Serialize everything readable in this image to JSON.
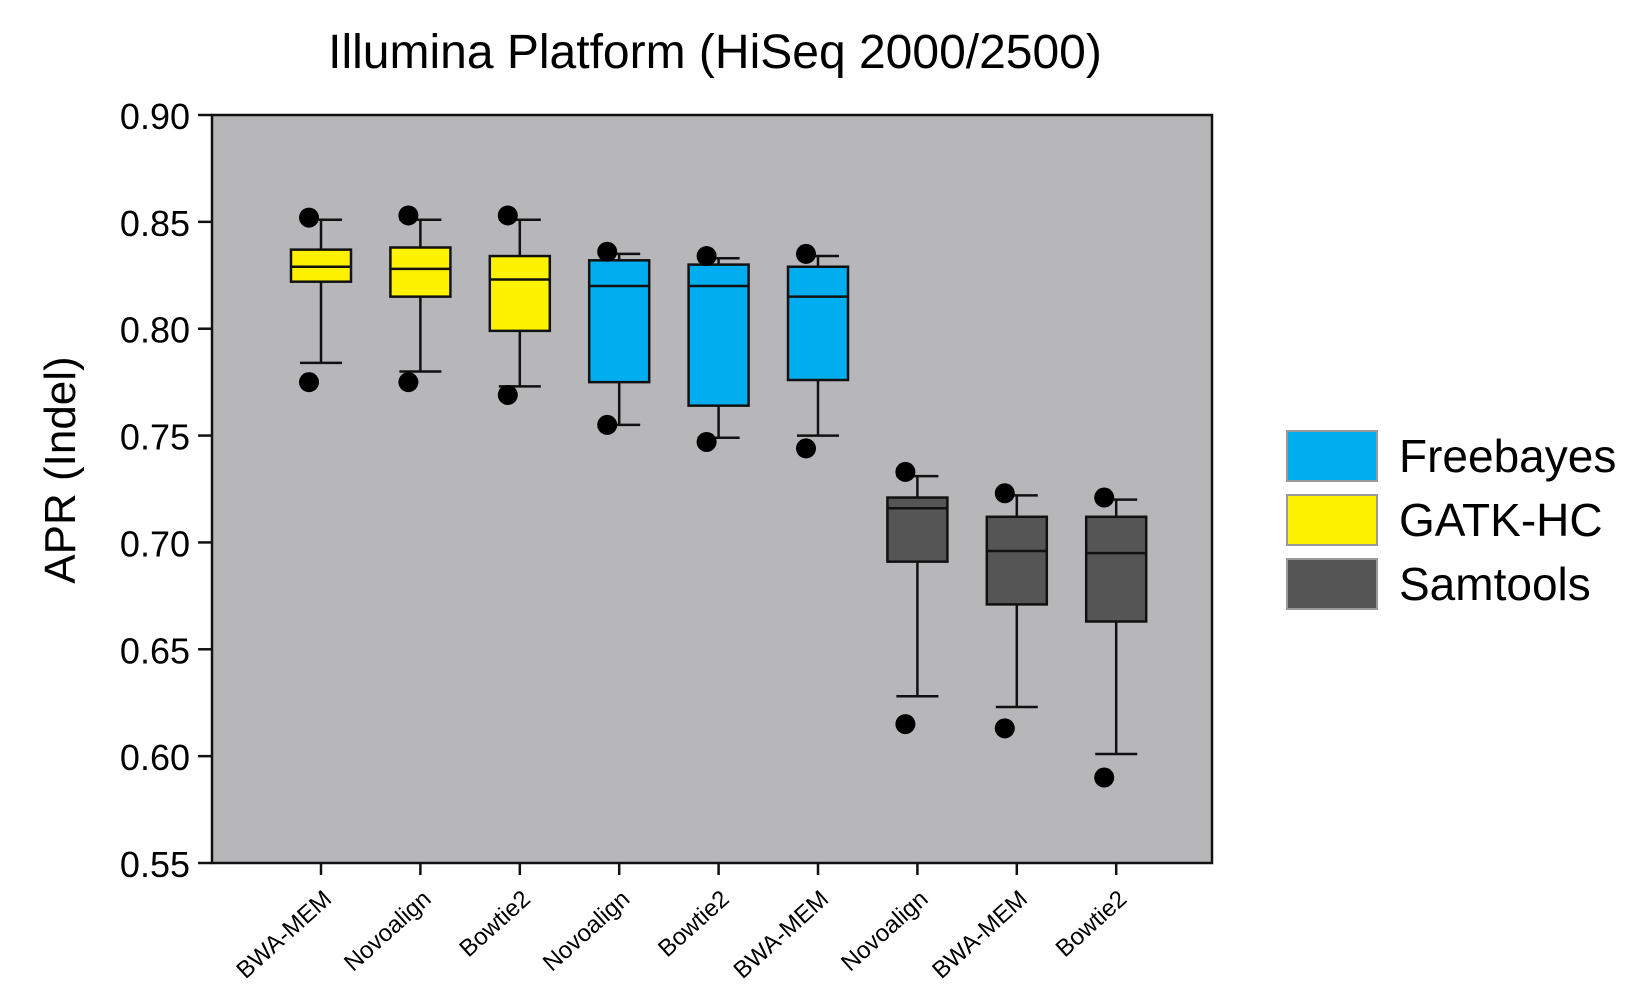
{
  "chart_data": {
    "type": "box",
    "title": "Illumina Platform (HiSeq 2000/2500)",
    "xlabel": "",
    "ylabel": "APR (Indel)",
    "ylim": [
      0.55,
      0.9
    ],
    "yticks": [
      "0.90",
      "0.85",
      "0.80",
      "0.75",
      "0.70",
      "0.65",
      "0.60",
      "0.55"
    ],
    "grid": false,
    "legend_position": "right",
    "categories": [
      "BWA-MEM",
      "Novoalign",
      "Bowtie2",
      "Novoalign",
      "Bowtie2",
      "BWA-MEM",
      "Novoalign",
      "BWA-MEM",
      "Bowtie2"
    ],
    "legend": [
      {
        "name": "Freebayes",
        "color": "#00aeef"
      },
      {
        "name": "GATK-HC",
        "color": "#fff200"
      },
      {
        "name": "Samtools",
        "color": "#555555"
      }
    ],
    "boxes": [
      {
        "label": "BWA-MEM",
        "caller": "GATK-HC",
        "whisker_low": 0.784,
        "q1": 0.822,
        "median": 0.829,
        "q3": 0.837,
        "whisker_high": 0.851,
        "outliers": [
          0.775,
          0.852
        ]
      },
      {
        "label": "Novoalign",
        "caller": "GATK-HC",
        "whisker_low": 0.78,
        "q1": 0.815,
        "median": 0.828,
        "q3": 0.838,
        "whisker_high": 0.851,
        "outliers": [
          0.775,
          0.853
        ]
      },
      {
        "label": "Bowtie2",
        "caller": "GATK-HC",
        "whisker_low": 0.773,
        "q1": 0.799,
        "median": 0.823,
        "q3": 0.834,
        "whisker_high": 0.851,
        "outliers": [
          0.769,
          0.853
        ]
      },
      {
        "label": "Novoalign",
        "caller": "Freebayes",
        "whisker_low": 0.755,
        "q1": 0.775,
        "median": 0.82,
        "q3": 0.832,
        "whisker_high": 0.835,
        "outliers": [
          0.755,
          0.836
        ]
      },
      {
        "label": "Bowtie2",
        "caller": "Freebayes",
        "whisker_low": 0.749,
        "q1": 0.764,
        "median": 0.82,
        "q3": 0.83,
        "whisker_high": 0.833,
        "outliers": [
          0.747,
          0.834
        ]
      },
      {
        "label": "BWA-MEM",
        "caller": "Freebayes",
        "whisker_low": 0.75,
        "q1": 0.776,
        "median": 0.815,
        "q3": 0.829,
        "whisker_high": 0.834,
        "outliers": [
          0.744,
          0.835
        ]
      },
      {
        "label": "Novoalign",
        "caller": "Samtools",
        "whisker_low": 0.628,
        "q1": 0.691,
        "median": 0.716,
        "q3": 0.721,
        "whisker_high": 0.731,
        "outliers": [
          0.615,
          0.733
        ]
      },
      {
        "label": "BWA-MEM",
        "caller": "Samtools",
        "whisker_low": 0.623,
        "q1": 0.671,
        "median": 0.696,
        "q3": 0.712,
        "whisker_high": 0.722,
        "outliers": [
          0.613,
          0.723
        ]
      },
      {
        "label": "Bowtie2",
        "caller": "Samtools",
        "whisker_low": 0.601,
        "q1": 0.663,
        "median": 0.695,
        "q3": 0.712,
        "whisker_high": 0.72,
        "outliers": [
          0.59,
          0.721
        ]
      }
    ]
  }
}
